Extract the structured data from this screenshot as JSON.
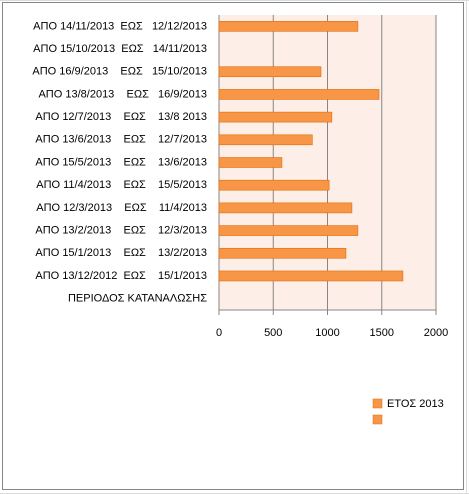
{
  "chart_data": {
    "type": "bar",
    "orientation": "horizontal",
    "categories": [
      "ΑΠΟ 14/11/2013  ΕΩΣ   12/12/2013",
      "ΑΠΟ 15/10/2013  ΕΩΣ   14/11/2013",
      "ΑΠΟ 16/9/2013    ΕΩΣ   15/10/2013",
      "ΑΠΟ 13/8/2013    ΕΩΣ   16/9/2013",
      "ΑΠΟ 12/7/2013    ΕΩΣ    13/8 2013",
      "ΑΠΟ 13/6/2013    ΕΩΣ    12/7/2013",
      "ΑΠΟ 15/5/2013    ΕΩΣ    13/6/2013",
      "ΑΠΟ 11/4/2013    ΕΩΣ    15/5/2013",
      "ΑΠΟ 12/3/2013    ΕΩΣ    11/4/2013",
      "ΑΠΟ 13/2/2013    ΕΩΣ    12/3/2013",
      "ΑΠΟ 15/1/2013    ΕΩΣ    13/2/2013",
      "ΑΠΟ 13/12/2012  ΕΩΣ    15/1/2013",
      "ΠΕΡΙΟΔΟΣ ΚΑΤΑΝΑΛΩΣΗΣ"
    ],
    "series": [
      {
        "name": "ΕΤΟΣ 2013",
        "color": "#f79646",
        "values": [
          1280,
          null,
          940,
          1475,
          1040,
          860,
          580,
          1015,
          1225,
          1280,
          1170,
          1695,
          null
        ]
      }
    ],
    "xlim": [
      0,
      2000
    ],
    "xticks": [
      0,
      500,
      1000,
      1500,
      2000
    ],
    "grid": true,
    "legend": "bottom-right"
  }
}
